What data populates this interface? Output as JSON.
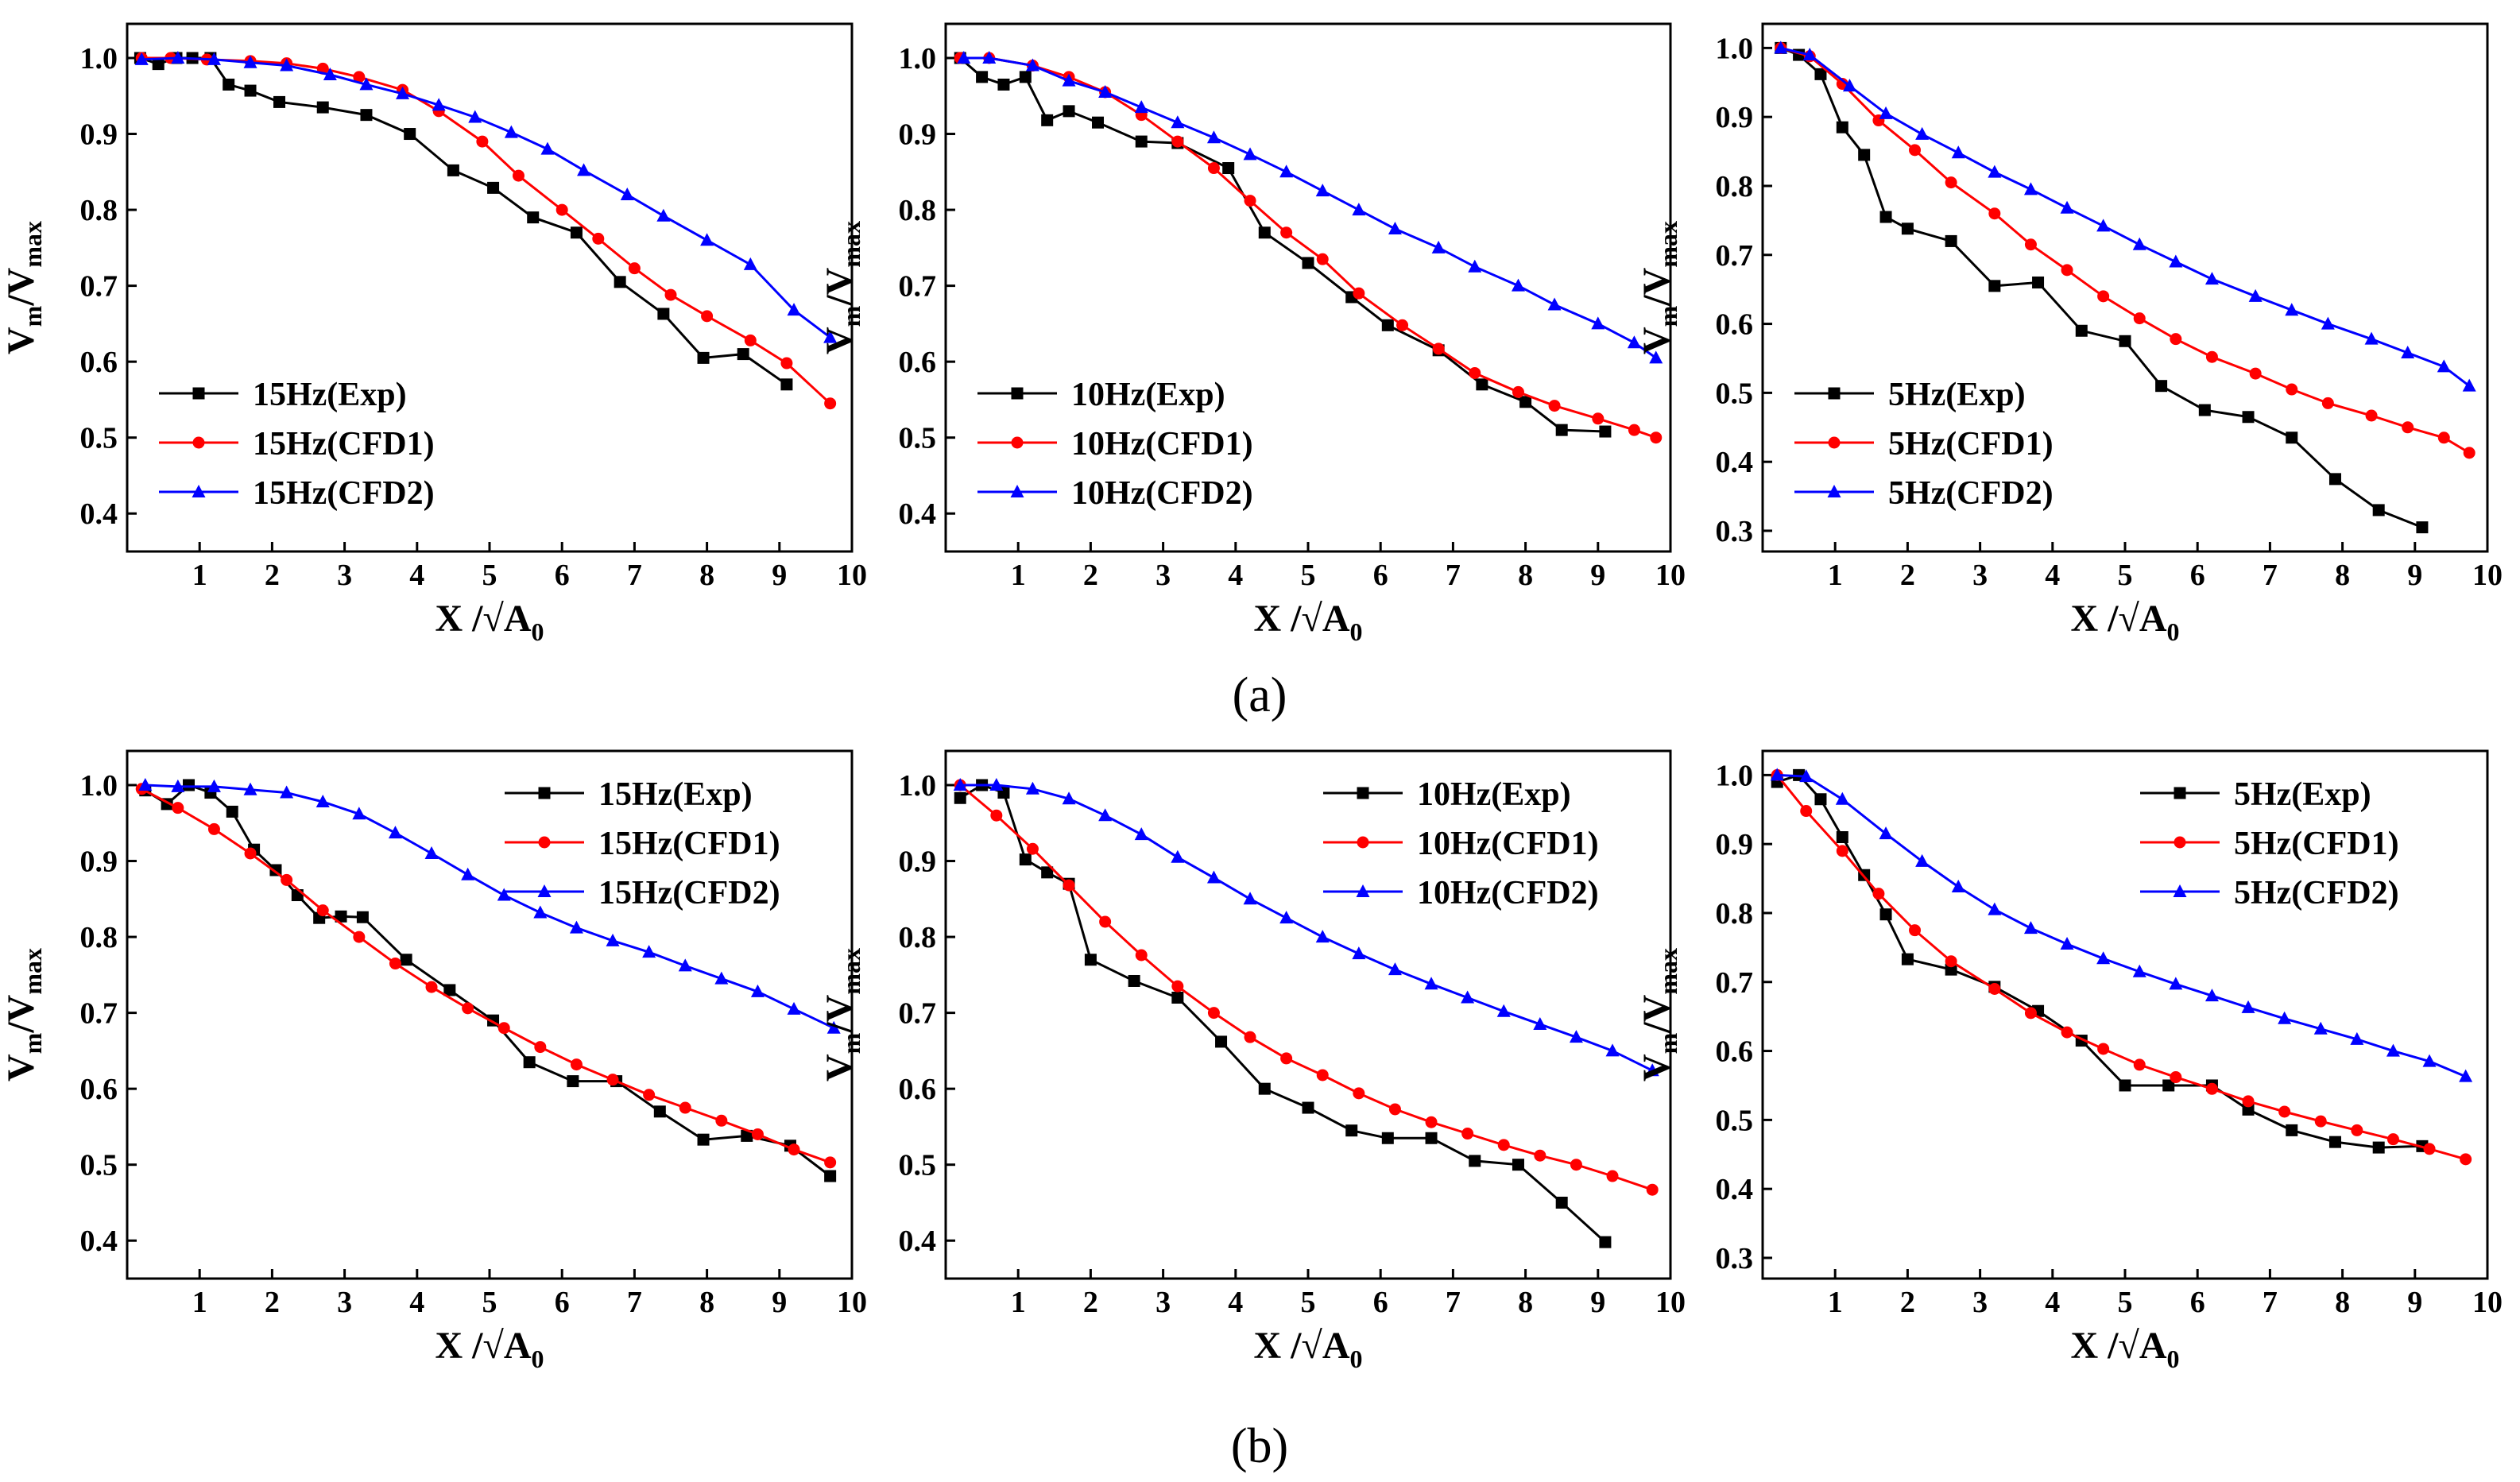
{
  "colors": {
    "exp": "#000000",
    "cfd1": "#ff0000",
    "cfd2": "#0000ff"
  },
  "panel_labels": [
    "(a)",
    "(b)"
  ],
  "chart_data": [
    {
      "type": "line",
      "row": "a",
      "col": 0,
      "xlabel": "X /√A0",
      "ylabel": "Vm/Vmax",
      "xlim": [
        0,
        10
      ],
      "ylim": [
        0.35,
        1.045
      ],
      "xticks": [
        1,
        2,
        3,
        4,
        5,
        6,
        7,
        8,
        9,
        10
      ],
      "yticks": [
        0.4,
        0.5,
        0.6,
        0.7,
        0.8,
        0.9,
        1.0
      ],
      "legend": "lower-left",
      "series": [
        {
          "name": "15Hz(Exp)",
          "color": "#000000",
          "marker": "square",
          "x": [
            0.18,
            0.43,
            0.68,
            0.9,
            1.15,
            1.4,
            1.7,
            2.1,
            2.7,
            3.3,
            3.9,
            4.5,
            5.05,
            5.6,
            6.2,
            6.8,
            7.4,
            7.95,
            8.5,
            9.1
          ],
          "y": [
            1.0,
            0.992,
            1.0,
            1.0,
            1.0,
            0.965,
            0.957,
            0.942,
            0.935,
            0.925,
            0.9,
            0.852,
            0.829,
            0.79,
            0.77,
            0.705,
            0.663,
            0.605,
            0.61,
            0.57
          ]
        },
        {
          "name": "15Hz(CFD1)",
          "color": "#ff0000",
          "marker": "circle",
          "x": [
            0.2,
            0.6,
            1.1,
            1.7,
            2.2,
            2.7,
            3.2,
            3.8,
            4.3,
            4.9,
            5.4,
            6.0,
            6.5,
            7.0,
            7.5,
            8.0,
            8.6,
            9.1,
            9.7
          ],
          "y": [
            1.0,
            1.0,
            0.998,
            0.996,
            0.993,
            0.986,
            0.975,
            0.958,
            0.93,
            0.89,
            0.845,
            0.8,
            0.762,
            0.723,
            0.688,
            0.66,
            0.628,
            0.598,
            0.545
          ]
        },
        {
          "name": "15Hz(CFD2)",
          "color": "#0000ff",
          "marker": "triangle",
          "x": [
            0.2,
            0.7,
            1.2,
            1.7,
            2.2,
            2.8,
            3.3,
            3.8,
            4.3,
            4.8,
            5.3,
            5.8,
            6.3,
            6.9,
            7.4,
            8.0,
            8.6,
            9.2,
            9.7
          ],
          "y": [
            0.998,
            1.0,
            0.998,
            0.994,
            0.99,
            0.978,
            0.965,
            0.953,
            0.938,
            0.922,
            0.902,
            0.88,
            0.852,
            0.82,
            0.792,
            0.76,
            0.728,
            0.668,
            0.632
          ]
        }
      ]
    },
    {
      "type": "line",
      "row": "a",
      "col": 1,
      "xlabel": "X /√A0",
      "ylabel": "Vm/Vmax",
      "xlim": [
        0,
        10
      ],
      "ylim": [
        0.35,
        1.045
      ],
      "xticks": [
        1,
        2,
        3,
        4,
        5,
        6,
        7,
        8,
        9,
        10
      ],
      "yticks": [
        0.4,
        0.5,
        0.6,
        0.7,
        0.8,
        0.9,
        1.0
      ],
      "legend": "lower-left",
      "series": [
        {
          "name": "10Hz(Exp)",
          "color": "#000000",
          "marker": "square",
          "x": [
            0.2,
            0.5,
            0.8,
            1.1,
            1.4,
            1.7,
            2.1,
            2.7,
            3.2,
            3.9,
            4.4,
            5.0,
            5.6,
            6.1,
            6.8,
            7.4,
            8.0,
            8.5,
            9.1
          ],
          "y": [
            1.0,
            0.975,
            0.965,
            0.975,
            0.918,
            0.93,
            0.915,
            0.89,
            0.888,
            0.855,
            0.77,
            0.73,
            0.685,
            0.648,
            0.615,
            0.57,
            0.547,
            0.51,
            0.508
          ]
        },
        {
          "name": "10Hz(CFD1)",
          "color": "#ff0000",
          "marker": "circle",
          "x": [
            0.2,
            0.6,
            1.2,
            1.7,
            2.2,
            2.7,
            3.2,
            3.7,
            4.2,
            4.7,
            5.2,
            5.7,
            6.3,
            6.8,
            7.3,
            7.9,
            8.4,
            9.0,
            9.5,
            9.8
          ],
          "y": [
            1.0,
            1.0,
            0.99,
            0.975,
            0.955,
            0.925,
            0.89,
            0.855,
            0.812,
            0.77,
            0.735,
            0.69,
            0.648,
            0.617,
            0.585,
            0.56,
            0.542,
            0.525,
            0.51,
            0.5
          ]
        },
        {
          "name": "10Hz(CFD2)",
          "color": "#0000ff",
          "marker": "triangle",
          "x": [
            0.25,
            0.6,
            1.2,
            1.7,
            2.2,
            2.7,
            3.2,
            3.7,
            4.2,
            4.7,
            5.2,
            5.7,
            6.2,
            6.8,
            7.3,
            7.9,
            8.4,
            9.0,
            9.5,
            9.8
          ],
          "y": [
            1.0,
            1.0,
            0.99,
            0.97,
            0.955,
            0.935,
            0.915,
            0.895,
            0.873,
            0.85,
            0.825,
            0.8,
            0.775,
            0.75,
            0.725,
            0.7,
            0.675,
            0.65,
            0.625,
            0.605
          ]
        }
      ]
    },
    {
      "type": "line",
      "row": "a",
      "col": 2,
      "xlabel": "X /√A0",
      "ylabel": "Vm/Vmax",
      "xlim": [
        0,
        10
      ],
      "ylim": [
        0.27,
        1.035
      ],
      "xticks": [
        1,
        2,
        3,
        4,
        5,
        6,
        7,
        8,
        9,
        10
      ],
      "yticks": [
        0.3,
        0.4,
        0.5,
        0.6,
        0.7,
        0.8,
        0.9,
        1.0
      ],
      "legend": "lower-left",
      "series": [
        {
          "name": "5Hz(Exp)",
          "color": "#000000",
          "marker": "square",
          "x": [
            0.25,
            0.5,
            0.8,
            1.1,
            1.4,
            1.7,
            2.0,
            2.6,
            3.2,
            3.8,
            4.4,
            5.0,
            5.5,
            6.1,
            6.7,
            7.3,
            7.9,
            8.5,
            9.1
          ],
          "y": [
            1.0,
            0.99,
            0.962,
            0.885,
            0.845,
            0.755,
            0.738,
            0.72,
            0.655,
            0.66,
            0.59,
            0.575,
            0.51,
            0.475,
            0.465,
            0.435,
            0.375,
            0.33,
            0.305
          ]
        },
        {
          "name": "5Hz(CFD1)",
          "color": "#ff0000",
          "marker": "circle",
          "x": [
            0.25,
            0.65,
            1.1,
            1.6,
            2.1,
            2.6,
            3.2,
            3.7,
            4.2,
            4.7,
            5.2,
            5.7,
            6.2,
            6.8,
            7.3,
            7.8,
            8.4,
            8.9,
            9.4,
            9.75
          ],
          "y": [
            1.0,
            0.988,
            0.948,
            0.895,
            0.852,
            0.805,
            0.76,
            0.715,
            0.678,
            0.64,
            0.608,
            0.578,
            0.552,
            0.528,
            0.505,
            0.485,
            0.467,
            0.45,
            0.435,
            0.413
          ]
        },
        {
          "name": "5Hz(CFD2)",
          "color": "#0000ff",
          "marker": "triangle",
          "x": [
            0.25,
            0.65,
            1.2,
            1.7,
            2.2,
            2.7,
            3.2,
            3.7,
            4.2,
            4.7,
            5.2,
            5.7,
            6.2,
            6.8,
            7.3,
            7.8,
            8.4,
            8.9,
            9.4,
            9.75
          ],
          "y": [
            1.0,
            0.99,
            0.945,
            0.905,
            0.875,
            0.848,
            0.82,
            0.795,
            0.768,
            0.742,
            0.715,
            0.69,
            0.665,
            0.64,
            0.62,
            0.6,
            0.578,
            0.558,
            0.538,
            0.51
          ]
        }
      ]
    },
    {
      "type": "line",
      "row": "b",
      "col": 0,
      "xlabel": "X /√A0",
      "ylabel": "Vm/Vmax",
      "xlim": [
        0,
        10
      ],
      "ylim": [
        0.35,
        1.045
      ],
      "xticks": [
        1,
        2,
        3,
        4,
        5,
        6,
        7,
        8,
        9,
        10
      ],
      "yticks": [
        0.4,
        0.5,
        0.6,
        0.7,
        0.8,
        0.9,
        1.0
      ],
      "legend": "upper-right",
      "series": [
        {
          "name": "15Hz(Exp)",
          "color": "#000000",
          "marker": "square",
          "x": [
            0.25,
            0.55,
            0.85,
            1.15,
            1.45,
            1.75,
            2.05,
            2.35,
            2.65,
            2.95,
            3.25,
            3.85,
            4.45,
            5.05,
            5.55,
            6.15,
            6.75,
            7.35,
            7.95,
            8.55,
            9.15,
            9.7
          ],
          "y": [
            0.993,
            0.975,
            1.0,
            0.99,
            0.965,
            0.915,
            0.888,
            0.855,
            0.825,
            0.827,
            0.826,
            0.77,
            0.73,
            0.69,
            0.635,
            0.61,
            0.61,
            0.57,
            0.533,
            0.538,
            0.525,
            0.485
          ]
        },
        {
          "name": "15Hz(CFD1)",
          "color": "#ff0000",
          "marker": "circle",
          "x": [
            0.2,
            0.7,
            1.2,
            1.7,
            2.2,
            2.7,
            3.2,
            3.7,
            4.2,
            4.7,
            5.2,
            5.7,
            6.2,
            6.7,
            7.2,
            7.7,
            8.2,
            8.7,
            9.2,
            9.7
          ],
          "y": [
            0.995,
            0.97,
            0.942,
            0.91,
            0.875,
            0.835,
            0.8,
            0.765,
            0.734,
            0.706,
            0.68,
            0.655,
            0.632,
            0.612,
            0.592,
            0.575,
            0.558,
            0.54,
            0.52,
            0.503
          ]
        },
        {
          "name": "15Hz(CFD2)",
          "color": "#0000ff",
          "marker": "triangle",
          "x": [
            0.25,
            0.7,
            1.2,
            1.7,
            2.2,
            2.7,
            3.2,
            3.7,
            4.2,
            4.7,
            5.2,
            5.7,
            6.2,
            6.7,
            7.2,
            7.7,
            8.2,
            8.7,
            9.2,
            9.75
          ],
          "y": [
            1.0,
            0.998,
            0.998,
            0.994,
            0.99,
            0.978,
            0.962,
            0.937,
            0.91,
            0.882,
            0.855,
            0.832,
            0.812,
            0.795,
            0.78,
            0.762,
            0.745,
            0.728,
            0.705,
            0.68
          ]
        }
      ]
    },
    {
      "type": "line",
      "row": "b",
      "col": 1,
      "xlabel": "X /√A0",
      "ylabel": "Vm/Vmax",
      "xlim": [
        0,
        10
      ],
      "ylim": [
        0.35,
        1.045
      ],
      "xticks": [
        1,
        2,
        3,
        4,
        5,
        6,
        7,
        8,
        9,
        10
      ],
      "yticks": [
        0.4,
        0.5,
        0.6,
        0.7,
        0.8,
        0.9,
        1.0
      ],
      "legend": "upper-right",
      "series": [
        {
          "name": "10Hz(Exp)",
          "color": "#000000",
          "marker": "square",
          "x": [
            0.2,
            0.5,
            0.8,
            1.1,
            1.4,
            1.7,
            2.0,
            2.6,
            3.2,
            3.8,
            4.4,
            5.0,
            5.6,
            6.1,
            6.7,
            7.3,
            7.9,
            8.5,
            9.1
          ],
          "y": [
            0.983,
            1.0,
            0.99,
            0.902,
            0.885,
            0.87,
            0.77,
            0.742,
            0.72,
            0.662,
            0.6,
            0.575,
            0.545,
            0.535,
            0.535,
            0.505,
            0.5,
            0.45,
            0.398
          ]
        },
        {
          "name": "10Hz(CFD1)",
          "color": "#ff0000",
          "marker": "circle",
          "x": [
            0.2,
            0.7,
            1.2,
            1.7,
            2.2,
            2.7,
            3.2,
            3.7,
            4.2,
            4.7,
            5.2,
            5.7,
            6.2,
            6.7,
            7.2,
            7.7,
            8.2,
            8.7,
            9.2,
            9.75
          ],
          "y": [
            1.0,
            0.96,
            0.916,
            0.868,
            0.82,
            0.776,
            0.735,
            0.7,
            0.668,
            0.64,
            0.618,
            0.594,
            0.573,
            0.556,
            0.541,
            0.526,
            0.512,
            0.5,
            0.485,
            0.467
          ]
        },
        {
          "name": "10Hz(CFD2)",
          "color": "#0000ff",
          "marker": "triangle",
          "x": [
            0.2,
            0.7,
            1.2,
            1.7,
            2.2,
            2.7,
            3.2,
            3.7,
            4.2,
            4.7,
            5.2,
            5.7,
            6.2,
            6.7,
            7.2,
            7.7,
            8.2,
            8.7,
            9.2,
            9.75
          ],
          "y": [
            1.0,
            1.0,
            0.995,
            0.982,
            0.96,
            0.935,
            0.905,
            0.878,
            0.85,
            0.825,
            0.8,
            0.778,
            0.757,
            0.738,
            0.72,
            0.702,
            0.685,
            0.668,
            0.65,
            0.624
          ]
        }
      ]
    },
    {
      "type": "line",
      "row": "b",
      "col": 2,
      "xlabel": "X /√A0",
      "ylabel": "Vm/Vmax",
      "xlim": [
        0,
        10
      ],
      "ylim": [
        0.27,
        1.035
      ],
      "xticks": [
        1,
        2,
        3,
        4,
        5,
        6,
        7,
        8,
        9,
        10
      ],
      "yticks": [
        0.3,
        0.4,
        0.5,
        0.6,
        0.7,
        0.8,
        0.9,
        1.0
      ],
      "legend": "upper-right",
      "series": [
        {
          "name": "5Hz(Exp)",
          "color": "#000000",
          "marker": "square",
          "x": [
            0.2,
            0.5,
            0.8,
            1.1,
            1.4,
            1.7,
            2.0,
            2.6,
            3.2,
            3.8,
            4.4,
            5.0,
            5.6,
            6.2,
            6.7,
            7.3,
            7.9,
            8.5,
            9.1
          ],
          "y": [
            0.99,
            1.0,
            0.965,
            0.91,
            0.855,
            0.798,
            0.733,
            0.718,
            0.693,
            0.658,
            0.615,
            0.55,
            0.55,
            0.55,
            0.515,
            0.485,
            0.468,
            0.46,
            0.462
          ]
        },
        {
          "name": "5Hz(CFD1)",
          "color": "#ff0000",
          "marker": "circle",
          "x": [
            0.2,
            0.6,
            1.1,
            1.6,
            2.1,
            2.6,
            3.2,
            3.7,
            4.2,
            4.7,
            5.2,
            5.7,
            6.2,
            6.7,
            7.2,
            7.7,
            8.2,
            8.7,
            9.2,
            9.7
          ],
          "y": [
            1.0,
            0.948,
            0.89,
            0.828,
            0.775,
            0.73,
            0.69,
            0.655,
            0.627,
            0.603,
            0.58,
            0.562,
            0.545,
            0.527,
            0.512,
            0.498,
            0.485,
            0.472,
            0.458,
            0.443
          ]
        },
        {
          "name": "5Hz(CFD2)",
          "color": "#0000ff",
          "marker": "triangle",
          "x": [
            0.2,
            0.6,
            1.1,
            1.7,
            2.2,
            2.7,
            3.2,
            3.7,
            4.2,
            4.7,
            5.2,
            5.7,
            6.2,
            6.7,
            7.2,
            7.7,
            8.2,
            8.7,
            9.2,
            9.7
          ],
          "y": [
            1.0,
            0.998,
            0.965,
            0.915,
            0.875,
            0.838,
            0.805,
            0.778,
            0.755,
            0.734,
            0.715,
            0.697,
            0.68,
            0.663,
            0.647,
            0.632,
            0.617,
            0.6,
            0.585,
            0.563
          ]
        }
      ]
    }
  ]
}
